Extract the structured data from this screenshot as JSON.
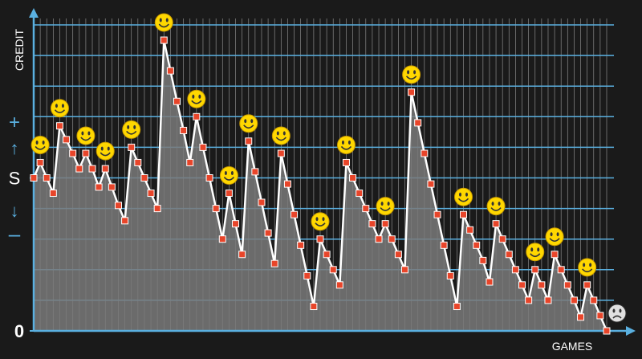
{
  "chart_data": {
    "type": "line",
    "y_label": "CREDIT",
    "x_label": "GAMES",
    "annotations": [
      "+",
      "↑",
      "↓",
      "–"
    ],
    "values": [
      5,
      5.5,
      5,
      4.5,
      6.7,
      6.25,
      5.8,
      5.3,
      5.8,
      5.3,
      4.7,
      5.3,
      4.7,
      4.1,
      3.6,
      6,
      5.5,
      5,
      4.5,
      4,
      9.5,
      8.5,
      7.5,
      6.55,
      5.5,
      7,
      6,
      5,
      4,
      3,
      4.5,
      3.5,
      2.5,
      6.2,
      5.2,
      4.2,
      3.2,
      2.2,
      5.8,
      4.8,
      3.8,
      2.8,
      1.8,
      0.8,
      3,
      2.5,
      2,
      1.5,
      5.5,
      5,
      4.5,
      4,
      3.5,
      3,
      3.5,
      3,
      2.5,
      2,
      7.8,
      6.8,
      5.8,
      4.8,
      3.8,
      2.8,
      1.8,
      0.8,
      3.8,
      3.3,
      2.8,
      2.3,
      1.6,
      3.5,
      3,
      2.5,
      2,
      1.5,
      1,
      2,
      1.5,
      1,
      2.5,
      2,
      1.5,
      1,
      0.45,
      1.5,
      1,
      0.5,
      0
    ],
    "ylim": [
      0,
      10
    ],
    "yticks": [
      {
        "value": 0,
        "label": "0"
      },
      {
        "value": 5,
        "label": "S"
      }
    ],
    "ygrid": [
      1,
      2,
      3,
      4,
      5,
      6,
      7,
      8,
      9,
      10
    ],
    "grid": true,
    "color": "#ffffff",
    "marker_color": "#e8452a",
    "area_color": "#7a7a7a",
    "axis_color": "#5ab0e0"
  }
}
